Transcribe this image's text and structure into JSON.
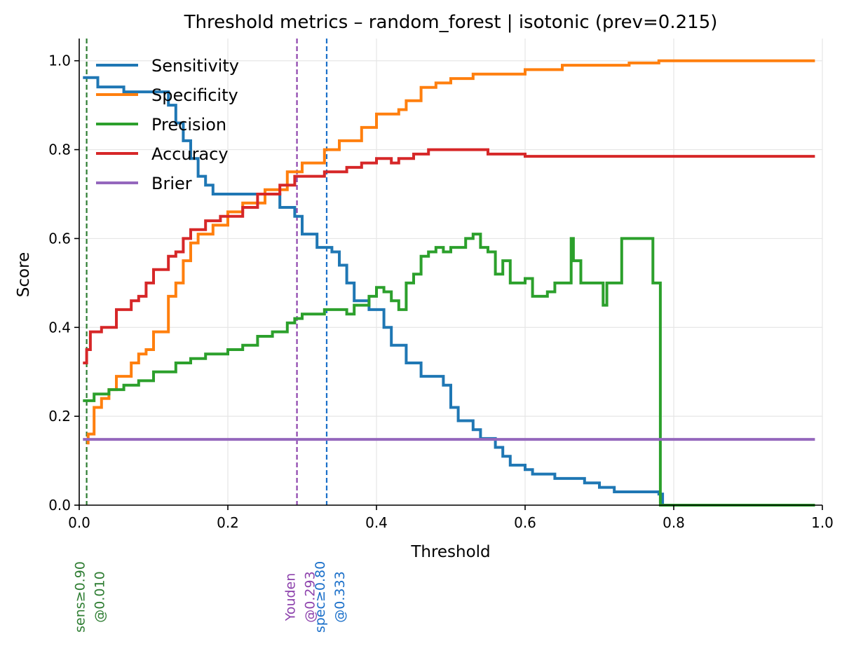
{
  "chart_data": {
    "type": "line",
    "title": "Threshold metrics – random_forest | isotonic  (prev=0.215)",
    "xlabel": "Threshold",
    "ylabel": "Score",
    "xlim": [
      0,
      1
    ],
    "ylim": [
      0,
      1.05
    ],
    "x_ticks": [
      "0.0",
      "0.2",
      "0.4",
      "0.6",
      "0.8",
      "1.0"
    ],
    "y_ticks": [
      "0.0",
      "0.2",
      "0.4",
      "0.6",
      "0.8",
      "1.0"
    ],
    "x_tick_values": [
      0,
      0.2,
      0.4,
      0.6,
      0.8,
      1.0
    ],
    "y_tick_values": [
      0,
      0.2,
      0.4,
      0.6,
      0.8,
      1.0
    ],
    "grid": true,
    "legend_position": "top-left",
    "series": [
      {
        "name": "Sensitivity",
        "color": "#1f77b4",
        "points": [
          [
            0.005,
            0.962
          ],
          [
            0.02,
            0.962
          ],
          [
            0.025,
            0.941
          ],
          [
            0.05,
            0.941
          ],
          [
            0.06,
            0.93
          ],
          [
            0.1,
            0.93
          ],
          [
            0.12,
            0.9
          ],
          [
            0.13,
            0.86
          ],
          [
            0.14,
            0.82
          ],
          [
            0.15,
            0.78
          ],
          [
            0.16,
            0.74
          ],
          [
            0.17,
            0.72
          ],
          [
            0.18,
            0.7
          ],
          [
            0.25,
            0.7
          ],
          [
            0.27,
            0.67
          ],
          [
            0.29,
            0.65
          ],
          [
            0.3,
            0.61
          ],
          [
            0.32,
            0.58
          ],
          [
            0.34,
            0.57
          ],
          [
            0.35,
            0.54
          ],
          [
            0.36,
            0.5
          ],
          [
            0.37,
            0.46
          ],
          [
            0.39,
            0.44
          ],
          [
            0.41,
            0.4
          ],
          [
            0.42,
            0.36
          ],
          [
            0.44,
            0.32
          ],
          [
            0.46,
            0.29
          ],
          [
            0.48,
            0.29
          ],
          [
            0.49,
            0.27
          ],
          [
            0.5,
            0.22
          ],
          [
            0.51,
            0.19
          ],
          [
            0.53,
            0.17
          ],
          [
            0.54,
            0.15
          ],
          [
            0.56,
            0.13
          ],
          [
            0.57,
            0.11
          ],
          [
            0.58,
            0.09
          ],
          [
            0.6,
            0.08
          ],
          [
            0.61,
            0.07
          ],
          [
            0.64,
            0.06
          ],
          [
            0.68,
            0.05
          ],
          [
            0.7,
            0.04
          ],
          [
            0.72,
            0.03
          ],
          [
            0.78,
            0.025
          ],
          [
            0.785,
            0.0
          ],
          [
            0.99,
            0.0
          ]
        ]
      },
      {
        "name": "Specificity",
        "color": "#ff7f0e",
        "points": [
          [
            0.01,
            0.14
          ],
          [
            0.012,
            0.16
          ],
          [
            0.02,
            0.22
          ],
          [
            0.03,
            0.24
          ],
          [
            0.04,
            0.26
          ],
          [
            0.05,
            0.29
          ],
          [
            0.07,
            0.32
          ],
          [
            0.08,
            0.34
          ],
          [
            0.09,
            0.35
          ],
          [
            0.1,
            0.39
          ],
          [
            0.12,
            0.47
          ],
          [
            0.13,
            0.5
          ],
          [
            0.14,
            0.55
          ],
          [
            0.15,
            0.59
          ],
          [
            0.16,
            0.61
          ],
          [
            0.18,
            0.63
          ],
          [
            0.2,
            0.66
          ],
          [
            0.22,
            0.68
          ],
          [
            0.25,
            0.71
          ],
          [
            0.28,
            0.75
          ],
          [
            0.3,
            0.77
          ],
          [
            0.33,
            0.8
          ],
          [
            0.35,
            0.82
          ],
          [
            0.38,
            0.85
          ],
          [
            0.4,
            0.88
          ],
          [
            0.43,
            0.89
          ],
          [
            0.44,
            0.91
          ],
          [
            0.46,
            0.94
          ],
          [
            0.48,
            0.95
          ],
          [
            0.5,
            0.96
          ],
          [
            0.53,
            0.97
          ],
          [
            0.6,
            0.98
          ],
          [
            0.65,
            0.99
          ],
          [
            0.7,
            0.99
          ],
          [
            0.74,
            0.995
          ],
          [
            0.78,
            1.0
          ],
          [
            0.99,
            1.0
          ]
        ]
      },
      {
        "name": "Precision",
        "color": "#2ca02c",
        "points": [
          [
            0.005,
            0.235
          ],
          [
            0.02,
            0.25
          ],
          [
            0.04,
            0.26
          ],
          [
            0.06,
            0.27
          ],
          [
            0.08,
            0.28
          ],
          [
            0.1,
            0.3
          ],
          [
            0.13,
            0.32
          ],
          [
            0.15,
            0.33
          ],
          [
            0.17,
            0.34
          ],
          [
            0.2,
            0.35
          ],
          [
            0.22,
            0.36
          ],
          [
            0.24,
            0.38
          ],
          [
            0.26,
            0.39
          ],
          [
            0.28,
            0.41
          ],
          [
            0.29,
            0.42
          ],
          [
            0.3,
            0.43
          ],
          [
            0.33,
            0.44
          ],
          [
            0.35,
            0.44
          ],
          [
            0.36,
            0.43
          ],
          [
            0.37,
            0.45
          ],
          [
            0.39,
            0.47
          ],
          [
            0.4,
            0.49
          ],
          [
            0.41,
            0.48
          ],
          [
            0.42,
            0.46
          ],
          [
            0.43,
            0.44
          ],
          [
            0.44,
            0.5
          ],
          [
            0.45,
            0.52
          ],
          [
            0.46,
            0.56
          ],
          [
            0.47,
            0.57
          ],
          [
            0.48,
            0.58
          ],
          [
            0.49,
            0.57
          ],
          [
            0.5,
            0.58
          ],
          [
            0.52,
            0.6
          ],
          [
            0.53,
            0.61
          ],
          [
            0.54,
            0.58
          ],
          [
            0.55,
            0.57
          ],
          [
            0.56,
            0.52
          ],
          [
            0.57,
            0.55
          ],
          [
            0.58,
            0.5
          ],
          [
            0.6,
            0.51
          ],
          [
            0.61,
            0.47
          ],
          [
            0.63,
            0.48
          ],
          [
            0.64,
            0.5
          ],
          [
            0.66,
            0.5
          ],
          [
            0.662,
            0.6
          ],
          [
            0.665,
            0.55
          ],
          [
            0.67,
            0.55
          ],
          [
            0.675,
            0.5
          ],
          [
            0.7,
            0.5
          ],
          [
            0.705,
            0.45
          ],
          [
            0.71,
            0.5
          ],
          [
            0.72,
            0.5
          ],
          [
            0.73,
            0.6
          ],
          [
            0.77,
            0.6
          ],
          [
            0.772,
            0.5
          ],
          [
            0.78,
            0.5
          ],
          [
            0.782,
            0.0
          ],
          [
            0.99,
            0.0
          ]
        ]
      },
      {
        "name": "Accuracy",
        "color": "#d62728",
        "points": [
          [
            0.005,
            0.32
          ],
          [
            0.01,
            0.35
          ],
          [
            0.015,
            0.39
          ],
          [
            0.03,
            0.4
          ],
          [
            0.05,
            0.44
          ],
          [
            0.07,
            0.46
          ],
          [
            0.08,
            0.47
          ],
          [
            0.09,
            0.5
          ],
          [
            0.1,
            0.53
          ],
          [
            0.12,
            0.56
          ],
          [
            0.13,
            0.57
          ],
          [
            0.14,
            0.6
          ],
          [
            0.15,
            0.62
          ],
          [
            0.17,
            0.64
          ],
          [
            0.19,
            0.65
          ],
          [
            0.22,
            0.67
          ],
          [
            0.24,
            0.7
          ],
          [
            0.27,
            0.72
          ],
          [
            0.29,
            0.74
          ],
          [
            0.3,
            0.74
          ],
          [
            0.33,
            0.75
          ],
          [
            0.36,
            0.76
          ],
          [
            0.38,
            0.77
          ],
          [
            0.4,
            0.78
          ],
          [
            0.42,
            0.77
          ],
          [
            0.43,
            0.78
          ],
          [
            0.45,
            0.79
          ],
          [
            0.47,
            0.8
          ],
          [
            0.5,
            0.8
          ],
          [
            0.52,
            0.8
          ],
          [
            0.55,
            0.79
          ],
          [
            0.6,
            0.785
          ],
          [
            0.65,
            0.785
          ],
          [
            0.7,
            0.785
          ],
          [
            0.75,
            0.785
          ],
          [
            0.8,
            0.785
          ],
          [
            0.99,
            0.785
          ]
        ]
      },
      {
        "name": "Brier",
        "color": "#9467bd",
        "points": [
          [
            0.005,
            0.148
          ],
          [
            0.99,
            0.148
          ]
        ]
      }
    ],
    "vlines": [
      {
        "x": 0.01,
        "color": "#2e7d32",
        "label": [
          "sens≥0.90",
          "@0.010"
        ]
      },
      {
        "x": 0.293,
        "color": "#8e44ad",
        "label": [
          "Youden",
          "@0.293"
        ]
      },
      {
        "x": 0.333,
        "color": "#1a6fc9",
        "label": [
          "spec≥0.80",
          "@0.333"
        ]
      }
    ]
  }
}
